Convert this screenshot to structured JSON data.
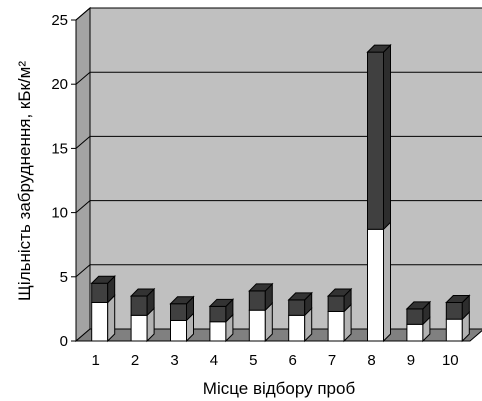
{
  "chart_data": {
    "type": "bar",
    "stacked": true,
    "three_d": true,
    "categories": [
      "1",
      "2",
      "3",
      "4",
      "5",
      "6",
      "7",
      "8",
      "9",
      "10"
    ],
    "series": [
      {
        "color": "#ffffff",
        "values": [
          3.0,
          2.0,
          1.6,
          1.5,
          2.4,
          2.0,
          2.3,
          8.7,
          1.3,
          1.7
        ]
      },
      {
        "color": "#404040",
        "values": [
          1.5,
          1.5,
          1.3,
          1.2,
          1.5,
          1.2,
          1.2,
          13.8,
          1.2,
          1.3
        ]
      }
    ],
    "ylim": [
      0,
      25
    ],
    "yticks": [
      "0",
      "5",
      "10",
      "15",
      "20",
      "25"
    ],
    "ylabel": "Щільність забруднення, кБк/м²",
    "xlabel": "Місце відбору проб",
    "grid": true,
    "wall_color": "#c0c0c0",
    "floor_color": "#808080"
  }
}
